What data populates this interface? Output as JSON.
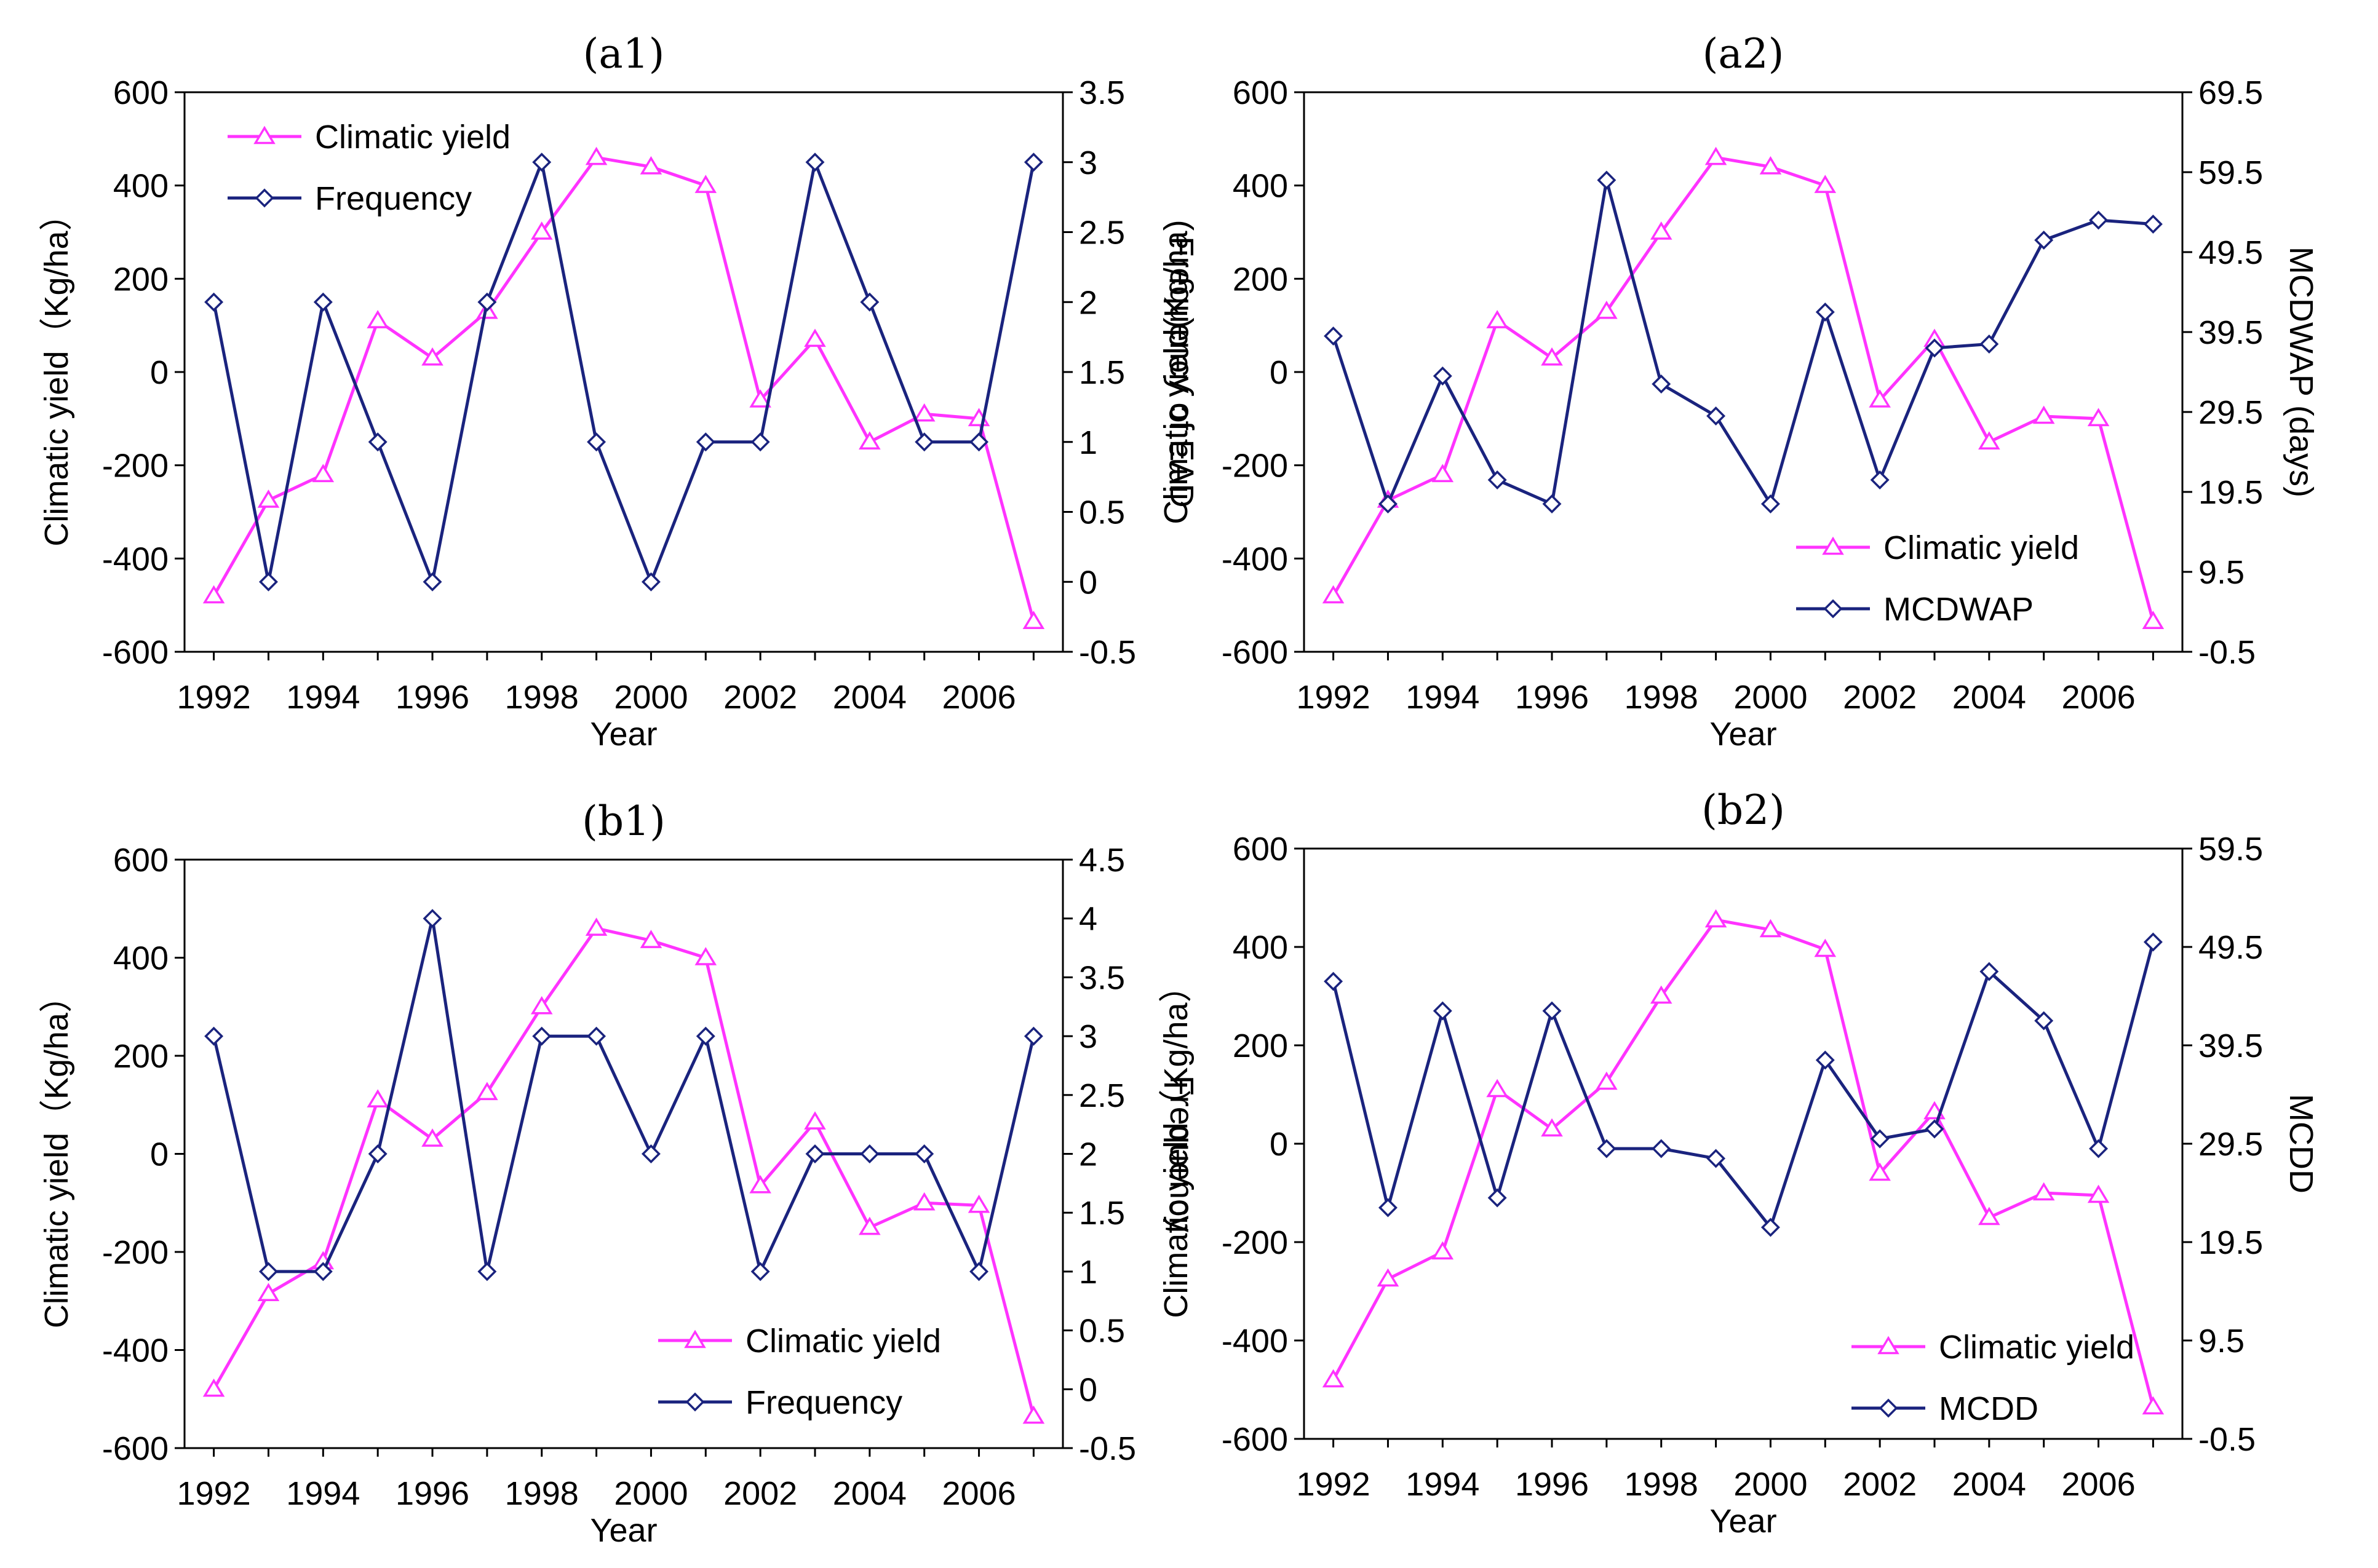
{
  "colors": {
    "yield": "#ff33ff",
    "second": "#1a237e",
    "axis": "#000000"
  },
  "chart_data": [
    {
      "type": "line",
      "title": "(a1)",
      "xlabel": "Year",
      "ylabel": "Climatic yield（Kg/ha）",
      "y2label": "Frequency of EAD",
      "x": [
        1992,
        1993,
        1994,
        1995,
        1996,
        1997,
        1998,
        1999,
        2000,
        2001,
        2002,
        2003,
        2004,
        2005,
        2006,
        2007
      ],
      "xticks": [
        "1992",
        "1994",
        "1996",
        "1998",
        "2000",
        "2002",
        "2004",
        "2006"
      ],
      "ylim": [
        -600,
        600
      ],
      "yticks": [
        "-600",
        "-400",
        "-200",
        "0",
        "200",
        "400",
        "600"
      ],
      "y2lim": [
        -0.5,
        3.5
      ],
      "y2ticks": [
        "-0.5",
        "0",
        "0.5",
        "1",
        "1.5",
        "2",
        "2.5",
        "3",
        "3.5"
      ],
      "legend_position": "top-left",
      "series": [
        {
          "name": "Climatic yield",
          "axis": "left",
          "marker": "triangle",
          "values": [
            -480,
            -275,
            -220,
            110,
            30,
            130,
            300,
            460,
            440,
            400,
            -60,
            70,
            -150,
            -90,
            -100,
            -535
          ]
        },
        {
          "name": "Frequency",
          "axis": "right",
          "marker": "diamond",
          "values": [
            2,
            0,
            2,
            1,
            0,
            2,
            3,
            1,
            0,
            1,
            1,
            3,
            2,
            1,
            1,
            3
          ]
        }
      ]
    },
    {
      "type": "line",
      "title": "(a2)",
      "xlabel": "Year",
      "ylabel": "Climatic yield(Kg/ha)",
      "y2label": "MCDWAP (days)",
      "x": [
        1992,
        1993,
        1994,
        1995,
        1996,
        1997,
        1998,
        1999,
        2000,
        2001,
        2002,
        2003,
        2004,
        2005,
        2006,
        2007
      ],
      "xticks": [
        "1992",
        "1994",
        "1996",
        "1998",
        "2000",
        "2002",
        "2004",
        "2006"
      ],
      "ylim": [
        -600,
        600
      ],
      "yticks": [
        "-600",
        "-400",
        "-200",
        "0",
        "200",
        "400",
        "600"
      ],
      "y2lim": [
        -0.5,
        69.5
      ],
      "y2ticks": [
        "-0.5",
        "9.5",
        "19.5",
        "29.5",
        "39.5",
        "49.5",
        "59.5",
        "69.5"
      ],
      "legend_position": "bottom-right",
      "series": [
        {
          "name": "Climatic yield",
          "axis": "left",
          "marker": "triangle",
          "values": [
            -480,
            -275,
            -220,
            110,
            30,
            130,
            300,
            460,
            440,
            400,
            -60,
            70,
            -150,
            -95,
            -100,
            -535
          ]
        },
        {
          "name": "MCDWAP",
          "axis": "right",
          "marker": "diamond",
          "values": [
            39,
            18,
            34,
            21,
            18,
            58.5,
            33,
            29,
            18,
            42,
            21,
            37.5,
            38,
            51,
            53.5,
            53
          ]
        }
      ]
    },
    {
      "type": "line",
      "title": "(b1)",
      "xlabel": "Year",
      "ylabel": "Climatic yield（Kg/ha）",
      "y2label": "Frequency",
      "x": [
        1992,
        1993,
        1994,
        1995,
        1996,
        1997,
        1998,
        1999,
        2000,
        2001,
        2002,
        2003,
        2004,
        2005,
        2006,
        2007
      ],
      "xticks": [
        "1992",
        "1994",
        "1996",
        "1998",
        "2000",
        "2002",
        "2004",
        "2006"
      ],
      "ylim": [
        -600,
        600
      ],
      "yticks": [
        "-600",
        "-400",
        "-200",
        "0",
        "200",
        "400",
        "600"
      ],
      "y2lim": [
        -0.5,
        4.5
      ],
      "y2ticks": [
        "-0.5",
        "0",
        "0.5",
        "1",
        "1.5",
        "2",
        "2.5",
        "3",
        "3.5",
        "4",
        "4.5"
      ],
      "legend_position": "bottom-right",
      "series": [
        {
          "name": "Climatic yield",
          "axis": "left",
          "marker": "triangle",
          "values": [
            -480,
            -285,
            -220,
            110,
            30,
            125,
            300,
            460,
            435,
            400,
            -65,
            65,
            -150,
            -100,
            -105,
            -535
          ]
        },
        {
          "name": "Frequency",
          "axis": "right",
          "marker": "diamond",
          "values": [
            3,
            1,
            1,
            2,
            4,
            1,
            3,
            3,
            2,
            3,
            1,
            2,
            2,
            2,
            1,
            3
          ]
        }
      ]
    },
    {
      "type": "line",
      "title": "(b2)",
      "xlabel": "Year",
      "ylabel": "Climatic yield（Kg/ha）",
      "y2label": "MCDD",
      "x": [
        1992,
        1993,
        1994,
        1995,
        1996,
        1997,
        1998,
        1999,
        2000,
        2001,
        2002,
        2003,
        2004,
        2005,
        2006,
        2007
      ],
      "xticks": [
        "1992",
        "1994",
        "1996",
        "1998",
        "2000",
        "2002",
        "2004",
        "2006"
      ],
      "ylim": [
        -600,
        600
      ],
      "yticks": [
        "-600",
        "-400",
        "-200",
        "0",
        "200",
        "400",
        "600"
      ],
      "y2lim": [
        -0.5,
        59.5
      ],
      "y2ticks": [
        "-0.5",
        "9.5",
        "19.5",
        "29.5",
        "39.5",
        "49.5",
        "59.5"
      ],
      "legend_position": "bottom-right",
      "series": [
        {
          "name": "Climatic yield",
          "axis": "left",
          "marker": "triangle",
          "values": [
            -480,
            -275,
            -220,
            110,
            30,
            125,
            300,
            455,
            435,
            395,
            -60,
            65,
            -150,
            -100,
            -105,
            -535
          ]
        },
        {
          "name": "MCDD",
          "axis": "right",
          "marker": "diamond",
          "values": [
            46,
            23,
            43,
            24,
            43,
            29,
            29,
            28,
            21,
            38,
            30,
            31,
            47,
            42,
            29,
            50
          ]
        }
      ]
    }
  ]
}
